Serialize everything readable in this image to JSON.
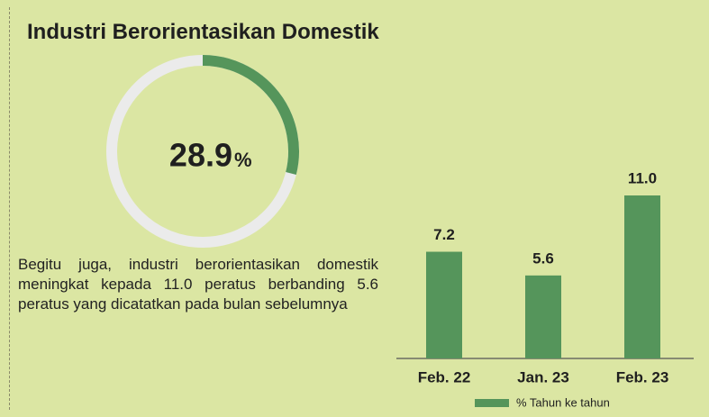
{
  "title": "Industri Berorientasikan Domestik",
  "donut": {
    "type": "donut",
    "value": 28.9,
    "unit": "%",
    "color": "#55955b",
    "track_color": "#ebebeb"
  },
  "paragraph": "Begitu juga, industri berorientasikan domestik meningkat kepada 11.0 peratus berbanding 5.6 peratus yang dicatatkan pada bulan sebelumnya",
  "chart_data": {
    "type": "bar",
    "categories": [
      "Feb. 22",
      "Jan. 23",
      "Feb. 23"
    ],
    "series": [
      {
        "name": "% Tahun ke tahun",
        "color": "#55955b",
        "values": [
          7.2,
          5.6,
          11.0
        ],
        "value_labels": [
          "7.2",
          "5.6",
          "11.0"
        ]
      }
    ]
  }
}
